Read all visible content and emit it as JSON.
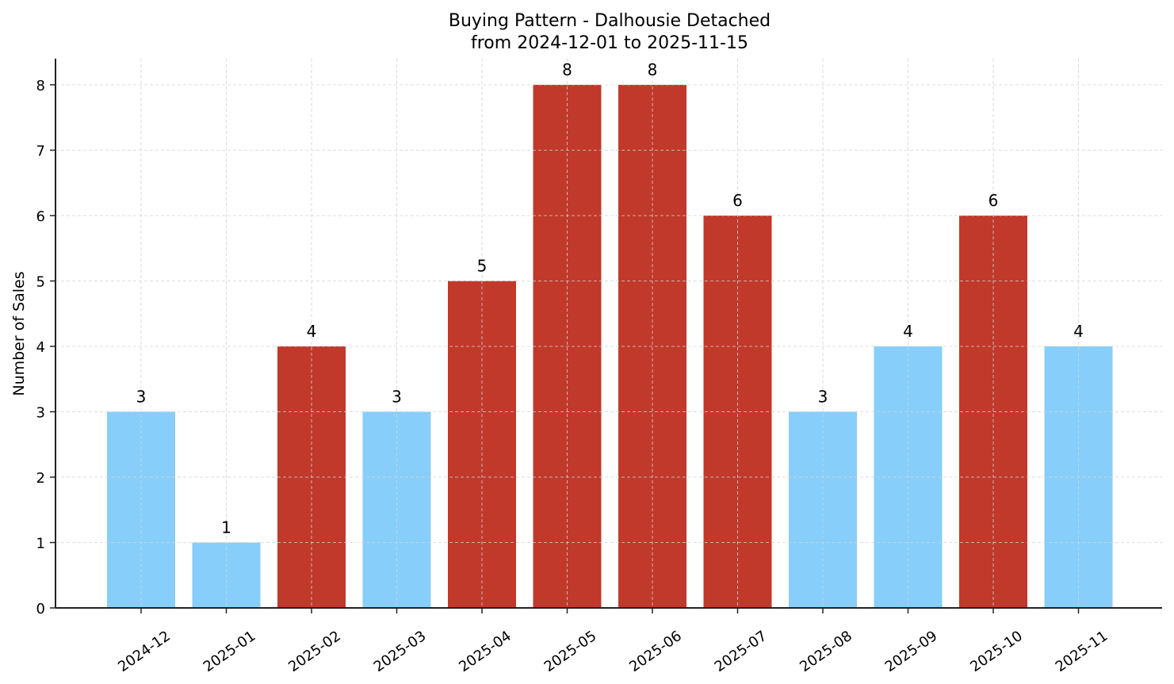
{
  "chart_data": {
    "type": "bar",
    "title": "Buying Pattern - Dalhousie Detached",
    "subtitle": "from 2024-12-01 to 2025-11-15",
    "xlabel": "",
    "ylabel": "Number of Sales",
    "categories": [
      "2024-12",
      "2025-01",
      "2025-02",
      "2025-03",
      "2025-04",
      "2025-05",
      "2025-06",
      "2025-07",
      "2025-08",
      "2025-09",
      "2025-10",
      "2025-11"
    ],
    "values": [
      3,
      1,
      4,
      3,
      5,
      8,
      8,
      6,
      3,
      4,
      6,
      4
    ],
    "highlight": [
      false,
      false,
      true,
      false,
      true,
      true,
      true,
      true,
      false,
      false,
      true,
      false
    ],
    "ylim": [
      0,
      8.4
    ],
    "yticks": [
      0,
      1,
      2,
      3,
      4,
      5,
      6,
      7,
      8
    ],
    "grid": true,
    "legend": null,
    "colors": {
      "high": "#c0392b",
      "normal": "#87cefa",
      "grid": "#d3d3d3",
      "axis": "#222222"
    }
  }
}
